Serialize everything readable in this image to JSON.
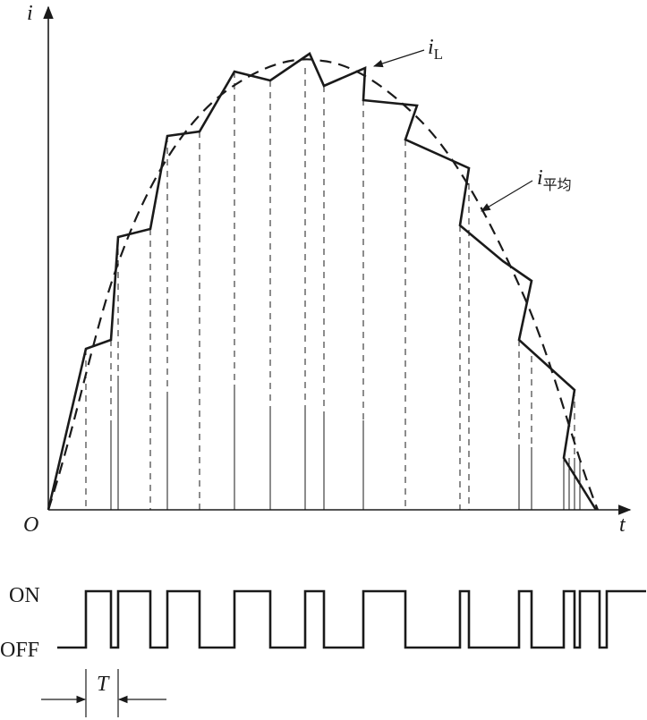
{
  "labels": {
    "y_axis": "i",
    "x_axis": "t",
    "origin": "O",
    "il_main": "i",
    "il_sub": "L",
    "iavg_main": "i",
    "iavg_sub": "平均",
    "on": "ON",
    "off": "OFF",
    "period": "T"
  },
  "colors": {
    "stroke": "#1a1a1a",
    "background": "#ffffff"
  }
}
